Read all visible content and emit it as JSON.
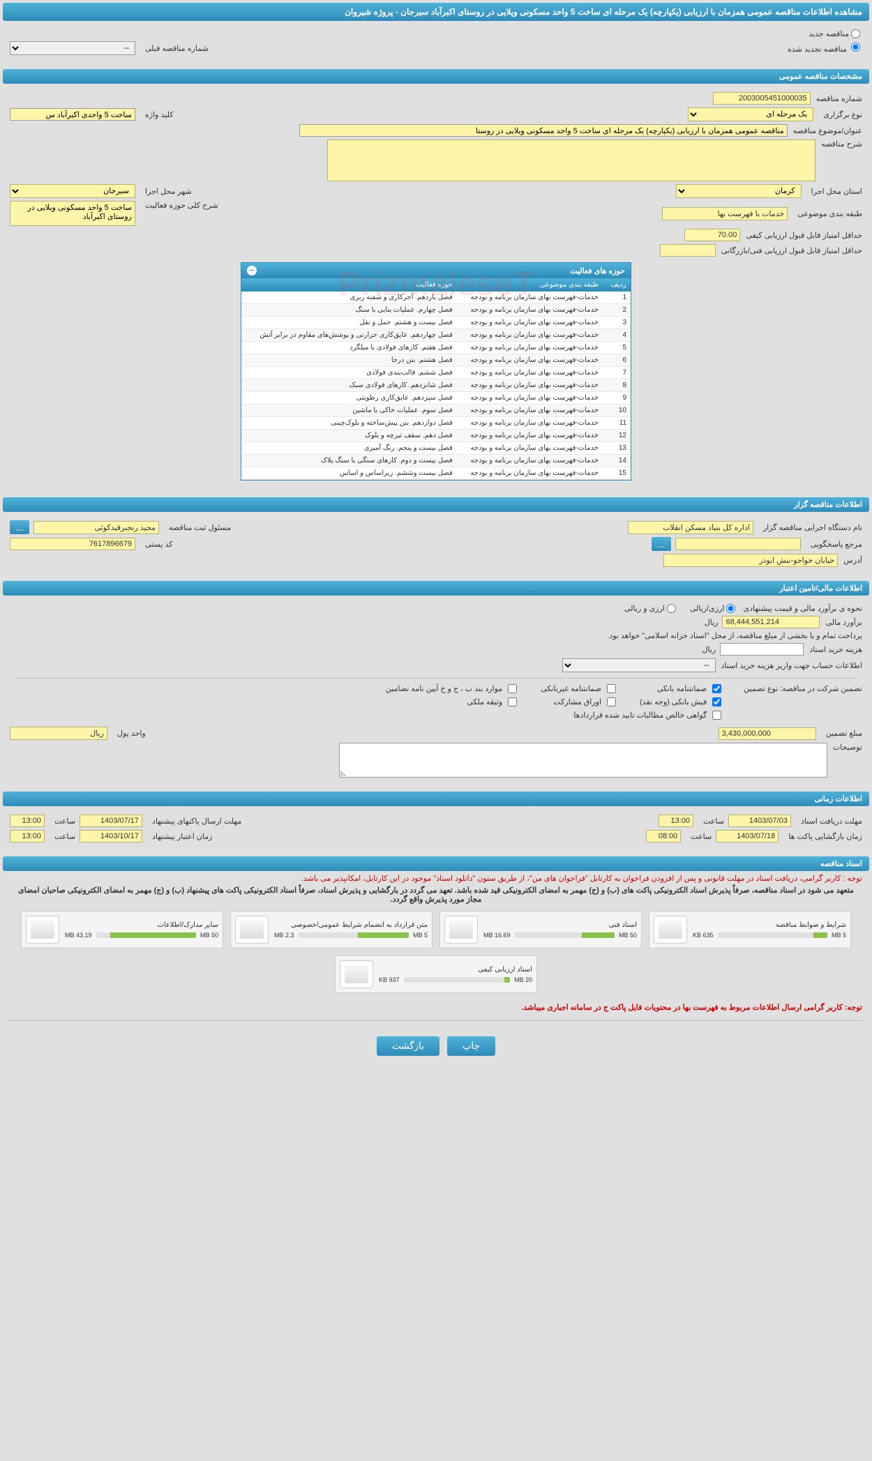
{
  "header": {
    "title": "مشاهده اطلاعات مناقصه عمومی همزمان با ارزیابی (یکپارچه) یک مرحله ای ساخت 5 واحد مسکونی ویلایی در روستای اکبرآباد سیرجان - پروژه شیروان"
  },
  "status": {
    "new_label": "مناقصه جدید",
    "renewed_label": "مناقصه تجدید شده",
    "prev_number_label": "شماره مناقصه قبلی",
    "prev_number_placeholder": "--"
  },
  "sections": {
    "general": "مشخصات مناقصه عمومی",
    "organizer": "اطلاعات مناقصه گزار",
    "financial": "اطلاعات مالی/تامین اعتبار",
    "time": "اطلاعات زمانی",
    "documents": "اسناد مناقصه"
  },
  "general": {
    "number_label": "شماره مناقصه",
    "number_value": "2003005451000035",
    "type_label": "نوع برگزاری",
    "type_value": "یک مرحله ای",
    "keyword_label": "کلید واژه",
    "keyword_value": "ساخت 5 واحدی اکبرآباد س",
    "title_label": "عنوان/موضوع مناقصه",
    "title_value": "مناقصه عمومی همزمان با ارزیابی (یکپارچه) یک مرحله ای ساخت 5 واحد مسکونی ویلایی در روستا",
    "desc_label": "شرح مناقصه",
    "desc_value": "",
    "province_label": "استان محل اجرا",
    "province_value": "کرمان",
    "city_label": "شهر محل اجرا",
    "city_value": "سیرجان",
    "category_label": "طبقه بندی موضوعی",
    "category_value": "خدمات با فهرست بها",
    "activity_desc_label": "شرح کلی حوزه فعالیت",
    "activity_desc_value": "ساخت 5 واحد مسکونی ویلایی در روستای اکبرآباد",
    "min_quality_label": "حداقل امتیاز قابل قبول ارزیابی کیفی",
    "min_quality_value": "70.00",
    "min_tech_label": "حداقل امتیاز قابل قبول ارزیابی فنی/بازرگانی",
    "min_tech_value": ""
  },
  "activity_table": {
    "title": "حوزه های فعالیت",
    "columns": {
      "row": "ردیف",
      "category": "طبقه بندی موضوعی",
      "area": "حوزه فعالیت"
    },
    "rows": [
      {
        "n": "1",
        "cat": "خدمات-فهرست بهای سازمان برنامه و بودجه",
        "area": "فصل یازدهم. آجرکاری و شفته ریزی"
      },
      {
        "n": "2",
        "cat": "خدمات-فهرست بهای سازمان برنامه و بودجه",
        "area": "فصل چهارم. عملیات بنایی با سنگ"
      },
      {
        "n": "3",
        "cat": "خدمات-فهرست بهای سازمان برنامه و بودجه",
        "area": "فصل بیست و هشتم. حمل و نقل"
      },
      {
        "n": "4",
        "cat": "خدمات-فهرست بهای سازمان برنامه و بودجه",
        "area": "فصل چهاردهم. عایق‌کاری حرارتی و پوشش‌های مقاوم در برابر آتش"
      },
      {
        "n": "5",
        "cat": "خدمات-فهرست بهای سازمان برنامه و بودجه",
        "area": "فصل هفتم. کارهای فولادی با میلگرد"
      },
      {
        "n": "6",
        "cat": "خدمات-فهرست بهای سازمان برنامه و بودجه",
        "area": "فصل هشتم. بتن درجا"
      },
      {
        "n": "7",
        "cat": "خدمات-فهرست بهای سازمان برنامه و بودجه",
        "area": "فصل ششم. قالب‌بندی فولادی"
      },
      {
        "n": "8",
        "cat": "خدمات-فهرست بهای سازمان برنامه و بودجه",
        "area": "فصل شانزدهم. کارهای فولادی سبک"
      },
      {
        "n": "9",
        "cat": "خدمات-فهرست بهای سازمان برنامه و بودجه",
        "area": "فصل سیزدهم. عایق‌کاری رطوبتی"
      },
      {
        "n": "10",
        "cat": "خدمات-فهرست بهای سازمان برنامه و بودجه",
        "area": "فصل سوم. عملیات خاکی با ماشین"
      },
      {
        "n": "11",
        "cat": "خدمات-فهرست بهای سازمان برنامه و بودجه",
        "area": "فصل دوازدهم. بتن پیش‌ساخته و بلوک‌چینی"
      },
      {
        "n": "12",
        "cat": "خدمات-فهرست بهای سازمان برنامه و بودجه",
        "area": "فصل دهم. سقف تیرچه و بلوک"
      },
      {
        "n": "13",
        "cat": "خدمات-فهرست بهای سازمان برنامه و بودجه",
        "area": "فصل بیست و پنجم. رنگ آمیزی"
      },
      {
        "n": "14",
        "cat": "خدمات-فهرست بهای سازمان برنامه و بودجه",
        "area": "فصل بیست و دوم. کارهای سنگی با سنگ پلاک"
      },
      {
        "n": "15",
        "cat": "خدمات-فهرست بهای سازمان برنامه و بودجه",
        "area": "فصل بیست وششم. زیراساس و اساس"
      }
    ]
  },
  "organizer": {
    "org_label": "نام دستگاه اجرایی مناقصه گزار",
    "org_value": "اداره کل بنیاد مسکن انقلاب",
    "resp_label": "مسئول ثبت مناقصه",
    "resp_value": "مجید رنجبرقیدکوئی",
    "ref_label": "مرجع پاسخگویی",
    "ref_value": "",
    "postal_label": "کد پستی",
    "postal_value": "7617896679",
    "address_label": "آدرس",
    "address_value": "خیابان خواجو-نبش ابوذر"
  },
  "financial": {
    "method_label": "نحوه ی برآورد مالی و قیمت پیشنهادی",
    "opt_rial": "ارزی/ریالی",
    "opt_both": "ارزی و ریالی",
    "estimate_label": "برآورد مالی",
    "estimate_value": "68,444,551,214",
    "currency": "ریال",
    "payment_note": "پرداخت تمام و یا بخشی از مبلغ مناقصه، از محل \"اسناد خزانه اسلامی\" خواهد بود.",
    "buy_cost_label": "هزینه خرید اسناد",
    "buy_cost_value": "",
    "account_label": "اطلاعات حساب جهت واریز هزینه خرید اسناد",
    "account_placeholder": "--",
    "guarantee_label": "تضمین شرکت در مناقصه:    نوع تضمین",
    "chk_bank_guarantee": "ضمانتنامه بانکی",
    "chk_nonbank_guarantee": "ضمانتنامه غیربانکی",
    "chk_items_bj": "موارد بند ب ، ج و خ آیین نامه تضامین",
    "chk_bank_receipt": "فیش بانکی (وجه نقد)",
    "chk_participation": "اوراق مشارکت",
    "chk_property": "وثیقه ملکی",
    "chk_net_receivables": "گواهی خالص مطالبات تایید شده قراردادها",
    "guarantee_amount_label": "مبلغ تضمین",
    "guarantee_amount_value": "3,430,000,000",
    "unit_label": "واحد پول",
    "unit_value": "ریال",
    "notes_label": "توضیحات"
  },
  "time": {
    "receive_label": "مهلت دریافت اسناد",
    "receive_date": "1403/07/03",
    "receive_time_label": "ساعت",
    "receive_time": "13:00",
    "send_label": "مهلت ارسال پاکتهای پیشنهاد",
    "send_date": "1403/07/17",
    "send_time_label": "ساعت",
    "send_time": "13:00",
    "open_label": "زمان بازگشایی پاکت ها",
    "open_date": "1403/07/18",
    "open_time_label": "ساعت",
    "open_time": "08:00",
    "validity_label": "زمان اعتبار پیشنهاد",
    "validity_date": "1403/10/17",
    "validity_time_label": "ساعت",
    "validity_time": "13:00"
  },
  "documents": {
    "notice1": "توجه : کاربر گرامی، دریافت اسناد در مهلت قانونی و پس از افزودن فراخوان به کارتابل \"فراخوان های من\"، از طریق ستون \"دانلود اسناد\" موجود در این کارتابل، امکانپذیر می باشد.",
    "notice2": "متعهد می شود در اسناد مناقصه، صرفاً پذیرش اسناد الکترونیکی پاکت های (ب) و (ج) مهمر به امضای الکترونیکی قید شده باشد. تعهد می گردد در بارگشایی و پذیرش اسناد، صرفاً اسناد الکترونیکی پاکت های پیشنهاد (ب) و (ج) مهمر به امضای الکترونیکی صاحبان امضای مجاز مورد پذیرش واقع گردد.",
    "files": [
      {
        "title": "شرایط و ضوابط مناقصه",
        "used": "635 KB",
        "total": "5 MB",
        "pct": 13
      },
      {
        "title": "اسناد فنی",
        "used": "16.69 MB",
        "total": "50 MB",
        "pct": 33
      },
      {
        "title": "متن قرارداد به انضمام شرایط عمومی/خصوصی",
        "used": "2.3 MB",
        "total": "5 MB",
        "pct": 46
      },
      {
        "title": "سایر مدارک/اطلاعات",
        "used": "43.19 MB",
        "total": "50 MB",
        "pct": 86
      },
      {
        "title": "اسناد ارزیابی کیفی",
        "used": "937 KB",
        "total": "20 MB",
        "pct": 5
      }
    ],
    "footer_note": "توجه: کاربر گرامی ارسال اطلاعات مربوط به فهرست بها در محتویات فایل پاکت ج در سامانه اجباری میباشد."
  },
  "buttons": {
    "print": "چاپ",
    "back": "بازگشت",
    "more": "..."
  },
  "watermark": "PrizmaleseT"
}
